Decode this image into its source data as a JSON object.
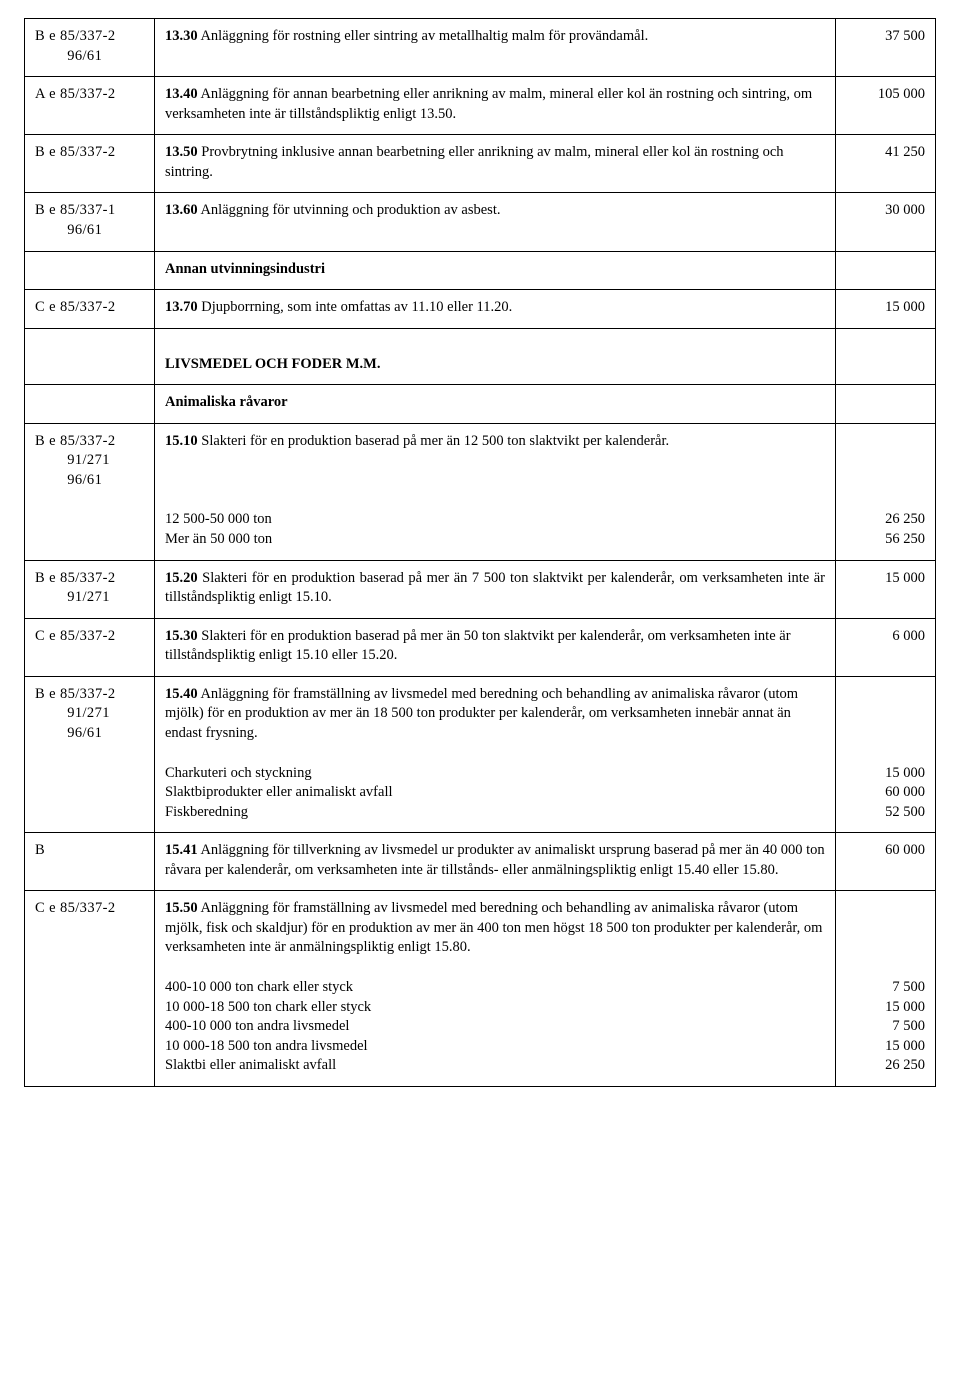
{
  "rows": [
    {
      "c1a": "B  e  85/337-2",
      "c1b": "96/61",
      "lead": "13.30",
      "text": "   Anläggning för rostning eller sintring av metallhaltig malm för provändamål.",
      "val": "37 500"
    },
    {
      "c1a": "A  e  85/337-2",
      "lead": "13.40",
      "text": "   Anläggning för annan bearbetning eller anrikning av malm, mineral eller kol än rostning och sintring, om verksamheten inte är tillståndspliktig enligt 13.50.",
      "val": "105 000"
    },
    {
      "c1a": "B  e  85/337-2",
      "lead": "13.50",
      "text": "   Provbrytning inklusive annan bearbetning eller anrikning av malm, mineral eller kol än rostning och sintring.",
      "val": "41 250"
    },
    {
      "c1a": "B  e  85/337-1",
      "c1b": "96/61",
      "lead": "13.60",
      "justify": true,
      "text": "   Anläggning för utvinning och produktion av asbest.",
      "val": "30 000"
    },
    {
      "heading": "Annan utvinningsindustri"
    },
    {
      "c1a": "C  e  85/337-2",
      "lead": "13.70",
      "text": "   Djupborrning, som inte omfattas av 11.10 eller 11.20.",
      "val": "15 000"
    },
    {
      "heading": "LIVSMEDEL OCH FODER M.M.",
      "tall": true
    },
    {
      "heading": "Animaliska råvaror"
    },
    {
      "c1a": "B  e  85/337-2",
      "c1b": "91/271",
      "c1c": "96/61",
      "lead": "15.10",
      "justify": true,
      "text": "   Slakteri för en produktion baserad på mer än 12 500 ton slaktvikt per kalenderår.",
      "sub": [
        {
          "t": "12 500-50 000 ton",
          "v": "26 250"
        },
        {
          "t": "Mer än 50 000 ton",
          "v": "56 250"
        }
      ]
    },
    {
      "c1a": "B  e  85/337-2",
      "c1b": "91/271",
      "lead": "15.20",
      "justify": true,
      "text": "   Slakteri för en produktion baserad på mer än 7 500 ton slaktvikt per kalenderår, om verksamheten inte är tillståndspliktig enligt 15.10.",
      "val": "15 000"
    },
    {
      "c1a": "C  e  85/337-2",
      "lead": "15.30",
      "text": "   Slakteri för en produktion baserad på mer än 50 ton slaktvikt per kalenderår, om verksamheten inte är tillståndspliktig enligt 15.10 eller 15.20.",
      "val": "6 000"
    },
    {
      "c1a": "B  e  85/337-2",
      "c1b": "91/271",
      "c1c": "96/61",
      "lead": "15.40",
      "text": "   Anläggning för framställning av livsmedel med beredning och behandling av animaliska råvaror (utom mjölk) för en produktion av mer än 18 500 ton produkter per kalenderår, om verksamheten innebär annat än endast frysning.",
      "sub": [
        {
          "t": "Charkuteri och styckning",
          "v": "15 000"
        },
        {
          "t": "Slaktbiprodukter eller animaliskt avfall",
          "v": "60 000"
        },
        {
          "t": "Fiskberedning",
          "v": "52 500"
        }
      ]
    },
    {
      "c1a": "B",
      "lead": "15.41",
      "text": "   Anläggning för tillverkning av livsmedel ur produkter av animaliskt ursprung baserad på mer än 40 000 ton råvara per kalenderår, om verksamheten inte är tillstånds- eller anmälningspliktig enligt 15.40 eller 15.80.",
      "val": "60 000"
    },
    {
      "c1a": "C  e  85/337-2",
      "lead": "15.50",
      "text": "   Anläggning för framställning av livsmedel med beredning och behandling av animaliska råvaror (utom mjölk, fisk och skaldjur) för en produktion av mer än 400 ton men högst 18 500 ton produkter per kalenderår, om verksamheten inte är anmälningspliktig enligt 15.80.",
      "sub": [
        {
          "t": "400-10 000 ton chark eller styck",
          "v": "7 500"
        },
        {
          "t": "10 000-18 500 ton chark eller styck",
          "v": "15 000"
        },
        {
          "t": "400-10 000 ton andra livsmedel",
          "v": "7 500"
        },
        {
          "t": "10 000-18 500 ton andra livsmedel",
          "v": "15 000"
        },
        {
          "t": "Slaktbi eller animaliskt avfall",
          "v": "26 250"
        }
      ]
    }
  ]
}
